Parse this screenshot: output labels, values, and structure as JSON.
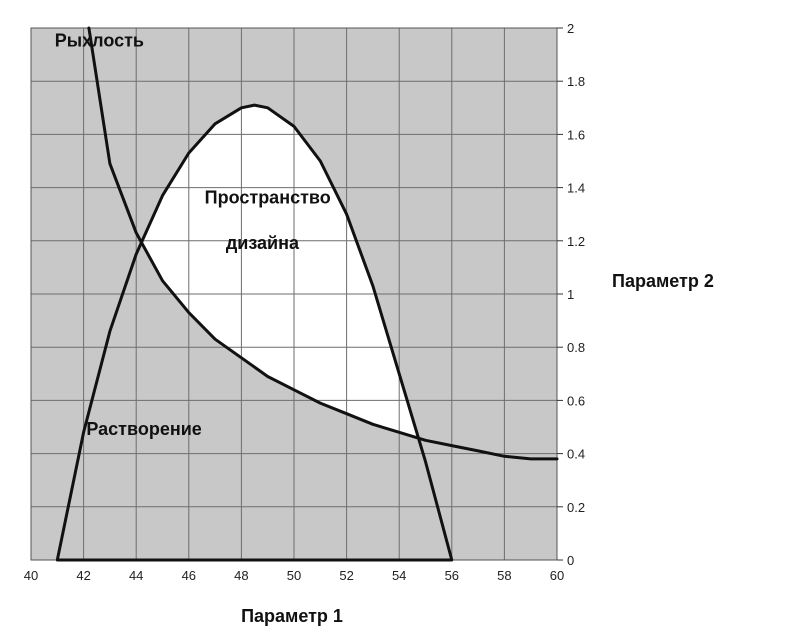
{
  "chart_data": {
    "type": "line",
    "xlabel": "Параметр 1",
    "ylabel": "Параметр 2",
    "xlim": [
      40,
      60
    ],
    "ylim": [
      0,
      2
    ],
    "xticks": [
      40,
      42,
      44,
      46,
      48,
      50,
      52,
      54,
      56,
      58,
      60
    ],
    "yticks": [
      0,
      0.2,
      0.4,
      0.6,
      0.8,
      1,
      1.2,
      1.4,
      1.6,
      1.8,
      2
    ],
    "ytick_labels": [
      "0",
      "0.2",
      "0.4",
      "0.6",
      "0.8",
      "1",
      "1.2",
      "1.4",
      "1.6",
      "1.8",
      "2"
    ],
    "grid": true,
    "y_axis_side": "right",
    "colors": {
      "background": "#c8c8c8",
      "design_space": "#ffffff",
      "grid": "#6e6e6e",
      "curve": "#111111"
    },
    "series": [
      {
        "name": "Рыхлость",
        "x": [
          42.2,
          43,
          44,
          45,
          46,
          47,
          48,
          49,
          50,
          51,
          52,
          53,
          54,
          55,
          56,
          57,
          58,
          59,
          60
        ],
        "y": [
          2.0,
          1.49,
          1.23,
          1.05,
          0.93,
          0.83,
          0.76,
          0.69,
          0.64,
          0.59,
          0.55,
          0.51,
          0.48,
          0.45,
          0.43,
          0.41,
          0.39,
          0.38,
          0.38
        ]
      },
      {
        "name": "Растворение",
        "x": [
          41,
          42,
          43,
          44,
          45,
          46,
          47,
          48,
          48.5,
          49,
          50,
          51,
          52,
          53,
          54,
          55,
          56
        ],
        "y": [
          0,
          0.48,
          0.86,
          1.15,
          1.37,
          1.53,
          1.64,
          1.7,
          1.71,
          1.7,
          1.63,
          1.5,
          1.3,
          1.03,
          0.7,
          0.37,
          0
        ]
      }
    ],
    "annotations": [
      {
        "text": "Рыхлость",
        "x": 42.6,
        "y": 1.93
      },
      {
        "text": "Пространство",
        "x": 49.0,
        "y": 1.34
      },
      {
        "text": "дизайна",
        "x": 48.8,
        "y": 1.17
      },
      {
        "text": "Растворение",
        "x": 44.3,
        "y": 0.47
      }
    ]
  }
}
